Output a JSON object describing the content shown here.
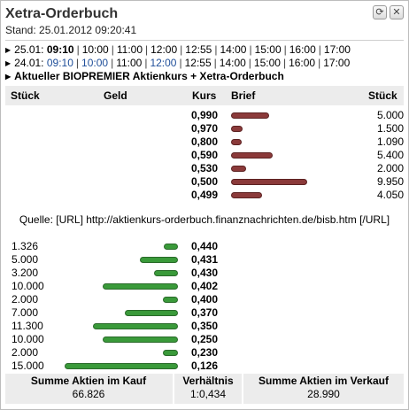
{
  "header": {
    "title": "Xetra-Orderbuch",
    "stand": "Stand: 25.01.2012 09:20:41"
  },
  "window_buttons": {
    "refresh_icon": "refresh-icon",
    "close_icon": "close-icon"
  },
  "days": [
    {
      "date": "25.01:",
      "times": [
        {
          "t": "09:10",
          "style": "bold"
        },
        {
          "t": "10:00",
          "style": "plain"
        },
        {
          "t": "11:00",
          "style": "plain"
        },
        {
          "t": "12:00",
          "style": "plain"
        },
        {
          "t": "12:55",
          "style": "plain"
        },
        {
          "t": "14:00",
          "style": "plain"
        },
        {
          "t": "15:00",
          "style": "plain"
        },
        {
          "t": "16:00",
          "style": "plain"
        },
        {
          "t": "17:00",
          "style": "plain"
        }
      ]
    },
    {
      "date": "24.01:",
      "times": [
        {
          "t": "09:10",
          "style": "blue"
        },
        {
          "t": "10:00",
          "style": "blue"
        },
        {
          "t": "11:00",
          "style": "plain"
        },
        {
          "t": "12:00",
          "style": "blue"
        },
        {
          "t": "12:55",
          "style": "plain"
        },
        {
          "t": "14:00",
          "style": "plain"
        },
        {
          "t": "15:00",
          "style": "plain"
        },
        {
          "t": "16:00",
          "style": "plain"
        },
        {
          "t": "17:00",
          "style": "plain"
        }
      ]
    }
  ],
  "subheading": "Aktueller BIOPREMIER Aktienkurs + Xetra-Orderbuch",
  "table_header": {
    "stueck_left": "Stück",
    "geld": "Geld",
    "kurs": "Kurs",
    "brief": "Brief",
    "stueck_right": "Stück"
  },
  "asks": [
    {
      "kurs": "0,990",
      "stueck": "5.000",
      "value": 5000
    },
    {
      "kurs": "0,970",
      "stueck": "1.500",
      "value": 1500
    },
    {
      "kurs": "0,800",
      "stueck": "1.090",
      "value": 1090
    },
    {
      "kurs": "0,590",
      "stueck": "5.400",
      "value": 5400
    },
    {
      "kurs": "0,530",
      "stueck": "2.000",
      "value": 2000
    },
    {
      "kurs": "0,500",
      "stueck": "9.950",
      "value": 9950
    },
    {
      "kurs": "0,499",
      "stueck": "4.050",
      "value": 4050
    }
  ],
  "source": "Quelle: [URL] http://aktienkurs-orderbuch.finanznachrichten.de/bisb.htm [/URL]",
  "bids": [
    {
      "stueck": "1.326",
      "kurs": "0,440",
      "value": 1326
    },
    {
      "stueck": "5.000",
      "kurs": "0,431",
      "value": 5000
    },
    {
      "stueck": "3.200",
      "kurs": "0,430",
      "value": 3200
    },
    {
      "stueck": "10.000",
      "kurs": "0,402",
      "value": 10000
    },
    {
      "stueck": "2.000",
      "kurs": "0,400",
      "value": 2000
    },
    {
      "stueck": "7.000",
      "kurs": "0,370",
      "value": 7000
    },
    {
      "stueck": "11.300",
      "kurs": "0,350",
      "value": 11300
    },
    {
      "stueck": "10.000",
      "kurs": "0,250",
      "value": 10000
    },
    {
      "stueck": "2.000",
      "kurs": "0,230",
      "value": 2000
    },
    {
      "stueck": "15.000",
      "kurs": "0,126",
      "value": 15000
    }
  ],
  "footer": {
    "kauf_label": "Summe Aktien im Kauf",
    "kauf_value": "66.826",
    "verhaeltnis_label": "Verhältnis",
    "verhaeltnis_value": "1:0,434",
    "verkauf_label": "Summe Aktien im Verkauf",
    "verkauf_value": "28.990"
  },
  "colors": {
    "ask_bar": "#8b3a3a",
    "bid_bar": "#3a9a3a",
    "time_link": "#1f4f9a"
  }
}
